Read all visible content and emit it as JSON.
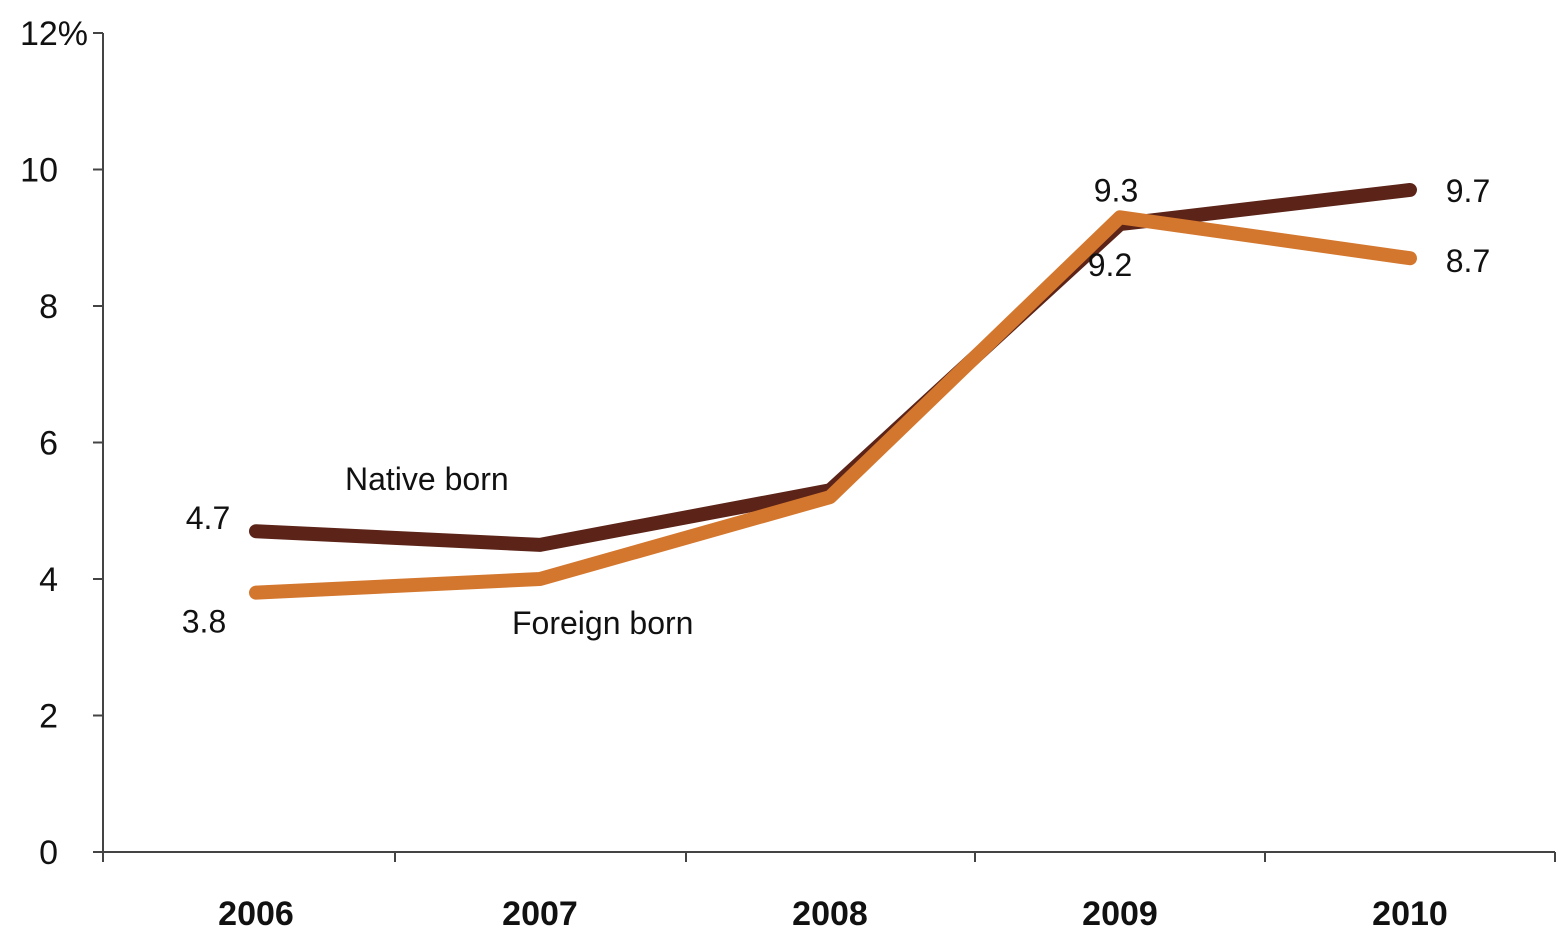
{
  "chart_data": {
    "type": "line",
    "categories": [
      "2006",
      "2007",
      "2008",
      "2009",
      "2010"
    ],
    "series": [
      {
        "name": "Native born",
        "values": [
          4.7,
          4.5,
          5.3,
          9.2,
          9.7
        ],
        "color": "#5c2418",
        "labels": [
          "4.7",
          "",
          "",
          "9.2",
          "9.7"
        ]
      },
      {
        "name": "Foreign born",
        "values": [
          3.8,
          4.0,
          5.2,
          9.3,
          8.7
        ],
        "color": "#d4772e",
        "labels": [
          "3.8",
          "",
          "",
          "9.3",
          "8.7"
        ]
      }
    ],
    "y_ticks": [
      "0",
      "2",
      "4",
      "6",
      "8",
      "10",
      "12%"
    ],
    "ylim": [
      0,
      12
    ],
    "grid": false,
    "legend": "inline labels"
  }
}
